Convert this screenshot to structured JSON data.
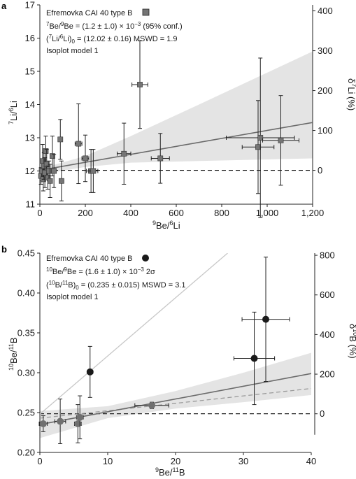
{
  "chart_data": [
    {
      "panel": "a",
      "type": "scatter",
      "legend": {
        "line1": "Efremovka CAI 40  type B",
        "line2_pre": "Be/",
        "line2_sup1": "7",
        "line2_sup2": "9",
        "line2_val": "Be = (1.2 ± 1.0) × 10",
        "line2_exp": "−3",
        "line2_post": " (95% conf.)",
        "line3_pre": "(",
        "line3_sup1": "7",
        "line3_mid": "Li/",
        "line3_sup2": "6",
        "line3_close": "Li)",
        "line3_sub": "0",
        "line3_val": " = (12.02 ± 0.16) MSWD = 1.9",
        "line4": "Isoplot model 1"
      },
      "xlabel": {
        "sup1": "9",
        "a": "Be/",
        "sup2": "6",
        "b": "Li"
      },
      "ylabel": {
        "sup1": "7",
        "a": "Li/",
        "sup2": "6",
        "b": "Li"
      },
      "y2label": {
        "pre": "δ",
        "sup": "7",
        "post": "Li (%)"
      },
      "xlim": [
        0,
        1200
      ],
      "ylim": [
        11,
        17
      ],
      "xticks": [
        "0",
        "200",
        "400",
        "600",
        "800",
        "1,000",
        "1,200"
      ],
      "xtick_values": [
        0,
        200,
        400,
        600,
        800,
        1000,
        1200
      ],
      "yticks": [
        "11",
        "12",
        "13",
        "14",
        "15",
        "16",
        "17"
      ],
      "ytick_values": [
        11,
        12,
        13,
        14,
        15,
        16,
        17
      ],
      "y2ticks": [
        "0",
        "100",
        "200",
        "300",
        "400"
      ],
      "y2tick_values": [
        12.02,
        13.22,
        14.42,
        15.62,
        16.82
      ],
      "baseline_y": 12.02,
      "fit": {
        "intercept": 12.02,
        "slope": 0.0012
      },
      "envelope_lower": [
        [
          0,
          11.85
        ],
        [
          60,
          11.96
        ],
        [
          200,
          12.12
        ],
        [
          400,
          12.25
        ],
        [
          700,
          12.3
        ],
        [
          1200,
          12.38
        ]
      ],
      "envelope_upper": [
        [
          0,
          12.2
        ],
        [
          60,
          12.18
        ],
        [
          200,
          12.45
        ],
        [
          400,
          13.05
        ],
        [
          700,
          14.0
        ],
        [
          1200,
          15.6
        ]
      ],
      "points": [
        {
          "x": 5,
          "y": 11.85,
          "xerr": 4,
          "yerr": 0.25
        },
        {
          "x": 8,
          "y": 12.0,
          "xerr": 5,
          "yerr": 0.3
        },
        {
          "x": 12,
          "y": 12.3,
          "xerr": 6,
          "yerr": 0.5
        },
        {
          "x": 15,
          "y": 11.75,
          "xerr": 5,
          "yerr": 0.35
        },
        {
          "x": 18,
          "y": 12.15,
          "xerr": 6,
          "yerr": 0.4
        },
        {
          "x": 22,
          "y": 11.95,
          "xerr": 6,
          "yerr": 0.45
        },
        {
          "x": 26,
          "y": 12.6,
          "xerr": 7,
          "yerr": 0.45
        },
        {
          "x": 30,
          "y": 12.2,
          "xerr": 6,
          "yerr": 0.45
        },
        {
          "x": 35,
          "y": 11.8,
          "xerr": 7,
          "yerr": 0.35
        },
        {
          "x": 40,
          "y": 12.0,
          "xerr": 8,
          "yerr": 0.3
        },
        {
          "x": 45,
          "y": 11.7,
          "xerr": 8,
          "yerr": 0.5
        },
        {
          "x": 55,
          "y": 12.45,
          "xerr": 8,
          "yerr": 0.6
        },
        {
          "x": 62,
          "y": 12.0,
          "xerr": 8,
          "yerr": 0.5
        },
        {
          "x": 90,
          "y": 12.95,
          "xerr": 10,
          "yerr": 0.6
        },
        {
          "x": 95,
          "y": 11.7,
          "xerr": 10,
          "yerr": 0.6
        },
        {
          "x": 170,
          "y": 12.82,
          "xerr": 15,
          "yerr": 1.2
        },
        {
          "x": 200,
          "y": 12.38,
          "xerr": 15,
          "yerr": 0.7
        },
        {
          "x": 225,
          "y": 12.0,
          "xerr": 20,
          "yerr": 0.65
        },
        {
          "x": 235,
          "y": 12.0,
          "xerr": 20,
          "yerr": 0.65
        },
        {
          "x": 370,
          "y": 12.52,
          "xerr": 30,
          "yerr": 0.92
        },
        {
          "x": 440,
          "y": 14.6,
          "xerr": 35,
          "yerr": 1.32
        },
        {
          "x": 530,
          "y": 12.38,
          "xerr": 40,
          "yerr": 0.75
        },
        {
          "x": 960,
          "y": 12.72,
          "xerr": 70,
          "yerr": 1.4
        },
        {
          "x": 970,
          "y": 13.0,
          "xerr": 150,
          "yerr": 2.4
        },
        {
          "x": 1060,
          "y": 12.92,
          "xerr": 80,
          "yerr": 1.35
        }
      ],
      "colors": {
        "marker": "#757575",
        "fit": "#6b6b6b",
        "envelope": "#e4e4e4"
      }
    },
    {
      "panel": "b",
      "type": "scatter",
      "legend": {
        "line1": "Efremovka CAI 40  type B",
        "line2_sup1": "10",
        "line2_a": "Be/",
        "line2_sup2": "9",
        "line2_val": "Be = (1.6 ± 1.0) × 10",
        "line2_exp": "−3",
        "line2_post": " 2σ",
        "line3_pre": "(",
        "line3_sup1": "10",
        "line3_mid": "B/",
        "line3_sup2": "11",
        "line3_close": "B)",
        "line3_sub": "0",
        "line3_val": " = (0.235 ± 0.015) MSWD = 3.1",
        "line4": "Isoplot model 1"
      },
      "xlabel": {
        "sup1": "9",
        "a": "Be/",
        "sup2": "11",
        "b": "B"
      },
      "ylabel": {
        "sup1": "10",
        "a": "Be/",
        "sup2": "11",
        "b": "B"
      },
      "y2label": {
        "pre": "δ",
        "sup": "10",
        "post": "B (%)"
      },
      "xlim": [
        0,
        40
      ],
      "ylim": [
        0.2,
        0.45
      ],
      "xticks": [
        "0",
        "10",
        "20",
        "30",
        "40"
      ],
      "xtick_values": [
        0,
        10,
        20,
        30,
        40
      ],
      "yticks": [
        "0.20",
        "0.25",
        "0.30",
        "0.35",
        "0.40",
        "0.45"
      ],
      "ytick_values": [
        0.2,
        0.25,
        0.3,
        0.35,
        0.4,
        0.45
      ],
      "y2ticks": [
        "0",
        "200",
        "400",
        "600",
        "800"
      ],
      "y2tick_values": [
        0.2485,
        0.2982,
        0.3479,
        0.3976,
        0.4473
      ],
      "baseline_y": 0.2485,
      "fit": {
        "intercept": 0.235,
        "slope": 0.0016
      },
      "dashed_fit": {
        "intercept": 0.243,
        "slope": 0.00093
      },
      "steep_line": {
        "intercept": 0.248,
        "slope": 0.0073
      },
      "envelope_lower": [
        [
          0,
          0.218
        ],
        [
          10,
          0.243
        ],
        [
          20,
          0.255
        ],
        [
          30,
          0.263
        ],
        [
          40,
          0.272
        ]
      ],
      "envelope_upper": [
        [
          0,
          0.252
        ],
        [
          10,
          0.258
        ],
        [
          20,
          0.277
        ],
        [
          30,
          0.3
        ],
        [
          40,
          0.325
        ]
      ],
      "points": [
        {
          "x": 0.5,
          "y": 0.236,
          "xerr": 0.6,
          "yerr": 0.01,
          "style": "gray"
        },
        {
          "x": 3.0,
          "y": 0.239,
          "xerr": 0.8,
          "yerr": 0.028,
          "style": "gray"
        },
        {
          "x": 5.6,
          "y": 0.236,
          "xerr": 0.5,
          "yerr": 0.024,
          "style": "gray"
        },
        {
          "x": 5.9,
          "y": 0.244,
          "xerr": 0.5,
          "yerr": 0.027,
          "style": "gray"
        },
        {
          "x": 7.4,
          "y": 0.301,
          "xerr": 0.4,
          "yerr": 0.032,
          "style": "black"
        },
        {
          "x": 16.5,
          "y": 0.259,
          "xerr": 2.5,
          "yerr": 0.004,
          "style": "gray"
        },
        {
          "x": 31.6,
          "y": 0.318,
          "xerr": 3.0,
          "yerr": 0.058,
          "style": "black"
        },
        {
          "x": 33.3,
          "y": 0.367,
          "xerr": 3.5,
          "yerr": 0.078,
          "style": "black"
        }
      ],
      "colors": {
        "marker_gray": "#707070",
        "marker_black": "#1a1a1a",
        "fit": "#6b6b6b",
        "dashed": "#9a9a9a",
        "steep": "#c8c8c8",
        "envelope": "#e4e4e4"
      }
    }
  ]
}
